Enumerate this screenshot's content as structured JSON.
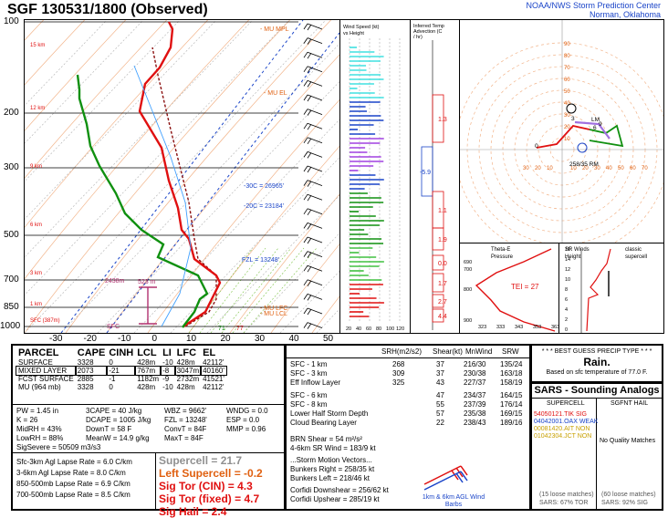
{
  "header": {
    "title": "SGF   130531/1800  (Observed)",
    "org_line1": "NOAA/NWS Storm Prediction Center",
    "org_line2": "Norman, Oklahoma"
  },
  "colors": {
    "temp": "#e01010",
    "dewpoint": "#109010",
    "virtual": "#8b1010",
    "wetbulb": "#40a0ff",
    "lapse": "#1a44c8",
    "annot": "#b0306f",
    "label": "#e06010"
  },
  "chart_data": [
    {
      "type": "line",
      "name": "skewt",
      "y_ticks": [
        "100",
        "200",
        "300",
        "500",
        "700",
        "850",
        "1000"
      ],
      "x_ticks": [
        "-30",
        "-20",
        "-10",
        "0",
        "10",
        "20",
        "30",
        "40",
        "50"
      ],
      "height_labels": [
        "15 km",
        "12 km",
        "9 km",
        "6 km",
        "3 km",
        "1 km",
        "SFC (387m)"
      ],
      "parcel_labels": {
        "mpl": "- MU MPL",
        "el": "- MU EL",
        "lfc": "- MU LFC",
        "lcl": "- MU LCL"
      },
      "annotations": {
        "c30": "-30C = 26965'",
        "c20": "-20C = 23184'",
        "fzl": "FZL = 13248'",
        "h2438": "2438m",
        "h523": "523 m",
        "sfc": "SFC",
        "t71": "71",
        "t77": "77"
      }
    },
    {
      "type": "bar",
      "name": "wind-speed-profile",
      "title": "Wind Speed (kt) vs Height",
      "x_ticks": [
        "20",
        "40",
        "60",
        "80",
        "100",
        "120"
      ]
    },
    {
      "type": "bar",
      "name": "temp-advection",
      "title": "Inferred Temp Advection (C / hr)",
      "values": [
        "1.3",
        "-5.9",
        "1.1",
        "1.9",
        "0.0",
        "1.7",
        "2.7",
        "4.4"
      ]
    },
    {
      "type": "line",
      "name": "hodograph",
      "ring_labels": [
        "10",
        "20",
        "30",
        "40",
        "50",
        "60",
        "70",
        "80",
        "90"
      ],
      "x_ticks": [
        "30",
        "20",
        "10",
        "10",
        "20",
        "30",
        "40",
        "50",
        "60",
        "70"
      ],
      "labels": {
        "lm": "258/35 RM",
        "lm2": "LM",
        "pts": [
          "0",
          "3",
          "6",
          "9"
        ]
      }
    },
    {
      "type": "line",
      "name": "theta-e",
      "title": "Theta-E vs Pressure",
      "y_ticks": [
        "690",
        "700",
        "800",
        "900"
      ],
      "x_ticks": [
        "323",
        "333",
        "343",
        "353",
        "363"
      ],
      "annot": "TEI = 27"
    },
    {
      "type": "line",
      "name": "sr-winds",
      "title": "SR Winds vs Height",
      "y_ticks": [
        "16",
        "14",
        "12",
        "10",
        "8",
        "6",
        "4",
        "2",
        "0"
      ],
      "note": "classic supercell"
    }
  ],
  "parcel": {
    "headers": [
      "PARCEL",
      "CAPE",
      "CINH",
      "LCL",
      "LI",
      "LFC",
      "EL"
    ],
    "rows": [
      [
        "SURFACE",
        "3328",
        "0",
        "428m",
        "-10",
        "428m",
        "42112'"
      ],
      [
        "MIXED LAYER",
        "2073",
        "-21",
        "767m",
        "-8",
        "3047m",
        "40160'"
      ],
      [
        "FCST SURFACE",
        "2885",
        "-1",
        "1182m",
        "-9",
        "2732m",
        "41521'"
      ],
      [
        "MU  (964 mb)",
        "3328",
        "0",
        "428m",
        "-10",
        "428m",
        "42112'"
      ]
    ]
  },
  "indices": {
    "col1": [
      "PW = 1.45 in",
      "K = 26",
      "MidRH = 43%",
      "LowRH = 88%",
      "SigSevere = 50509 m3/s3"
    ],
    "col2": [
      "3CAPE = 40 J/kg",
      "DCAPE = 1005 J/kg",
      "DownT = 58 F",
      "MeanW = 14.9 g/kg"
    ],
    "col3": [
      "WBZ = 9662'",
      "FZL = 13248'",
      "ConvT = 84F",
      "MaxT = 84F"
    ],
    "col4": [
      "WNDG = 0.0",
      "ESP = 0.0",
      "MMP = 0.96"
    ]
  },
  "lapse": [
    "Sfc-3km Agl Lapse Rate =  6.0 C/km",
    "3-6km Agl Lapse Rate =  8.0 C/km",
    "850-500mb Lapse Rate =  6.9 C/km",
    "700-500mb Lapse Rate =  8.5 C/km"
  ],
  "severe": {
    "supercell": "Supercell = 21.7",
    "left": "Left Supercell = -0.2",
    "torcin": "Sig Tor (CIN) = 4.3",
    "torfix": "Sig Tor (fixed) = 4.7",
    "hail": "Sig Hail = 2.4"
  },
  "kinematic": {
    "headers": [
      "SRH(m2/s2)",
      "Shear(kt)",
      "MnWind",
      "SRW"
    ],
    "rows": [
      [
        "SFC - 1 km",
        "268",
        "37",
        "216/30",
        "135/24"
      ],
      [
        "SFC - 3 km",
        "309",
        "37",
        "230/38",
        "163/18"
      ],
      [
        "Eff Inflow Layer",
        "325",
        "43",
        "227/37",
        "158/19"
      ],
      [
        "SFC - 6 km",
        "",
        "47",
        "234/37",
        "164/15"
      ],
      [
        "SFC - 8 km",
        "",
        "55",
        "237/39",
        "176/14"
      ],
      [
        "Lower Half Storm Depth",
        "",
        "57",
        "235/38",
        "169/15"
      ],
      [
        "Cloud Bearing Layer",
        "",
        "22",
        "238/43",
        "189/16"
      ]
    ],
    "brn": "BRN Shear = 54 m²/s²",
    "srw": "4-6km SR Wind =        183/9 kt",
    "storm_title": "...Storm Motion Vectors...",
    "bunkers_r": "Bunkers Right =       258/35 kt",
    "bunkers_l": "Bunkers Left =        218/46 kt",
    "corfidi_d": "Corfidi Downshear =   256/62 kt",
    "corfidi_u": "Corfidi Upshear =     285/19 kt",
    "barb_note": "1km & 6km AGL Wind Barbs"
  },
  "precip": {
    "title": "* * * BEST GUESS PRECIP TYPE * * *",
    "type": "Rain.",
    "basis": "Based on sfc temperature of 77.0 F."
  },
  "sars": {
    "title": "SARS - Sounding Analogs",
    "supercell": "SUPERCELL",
    "hail": "SGFNT HAIL",
    "matches": [
      [
        "54050121.TIK",
        "SIG"
      ],
      [
        "04042001.OAX",
        "WEAK"
      ],
      [
        "00081420.AIT",
        "NON"
      ],
      [
        "01042304.JCT",
        "NON"
      ]
    ],
    "no_quality": "No Quality Matches",
    "loose1": "(15 loose matches)",
    "loose2": "(60 loose matches)",
    "pct1": "SARS:  67% TOR",
    "pct2": "SARS:  92% SIG"
  }
}
